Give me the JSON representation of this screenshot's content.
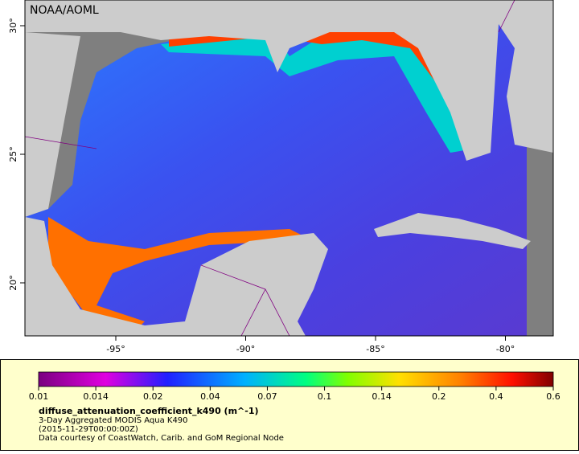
{
  "header": {
    "title": "NOAA/AOML"
  },
  "axes": {
    "lon_ticks": [
      "-95°",
      "-90°",
      "-85°",
      "-80°"
    ],
    "lat_ticks": [
      "30°",
      "25°",
      "20°"
    ]
  },
  "colorbar": {
    "labels": [
      "0.01",
      "0.014",
      "0.02",
      "0.04",
      "0.07",
      "0.1",
      "0.14",
      "0.2",
      "0.4",
      "0.6"
    ]
  },
  "legend": {
    "variable": "diffuse_attenuation_coefficient_k490 (m^-1)",
    "lines": [
      "3-Day Aggregated MODIS Aqua K490",
      "(2015-11-29T00:00:00Z)",
      "Data courtesy of CoastWatch, Carib. and GoM Regional Node"
    ]
  }
}
